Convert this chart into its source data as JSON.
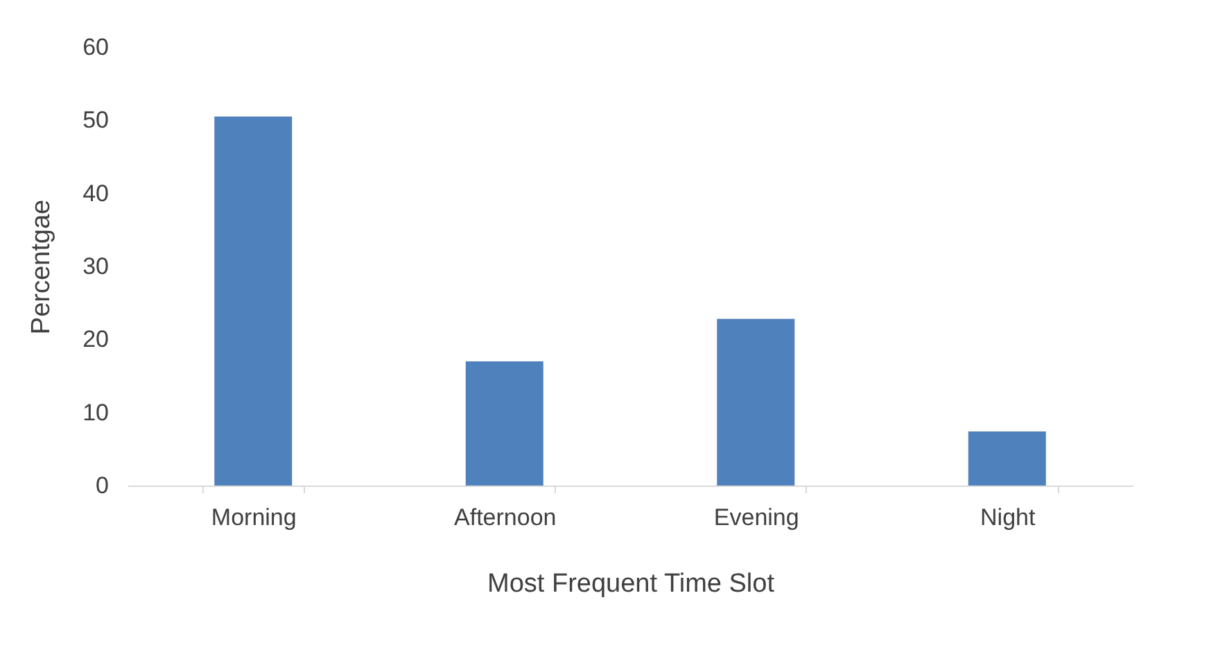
{
  "chart_data": {
    "type": "bar",
    "xlabel": "Most Frequent Time Slot",
    "ylabel": "Percentgae",
    "categories": [
      "Morning",
      "Afternoon",
      "Evening",
      "Night"
    ],
    "values": [
      50.5,
      17,
      22.8,
      7.4
    ],
    "color": "#4f81bd",
    "ylim": [
      0,
      60
    ],
    "yticks": [
      0,
      10,
      20,
      30,
      40,
      50,
      60
    ],
    "grid": false
  }
}
